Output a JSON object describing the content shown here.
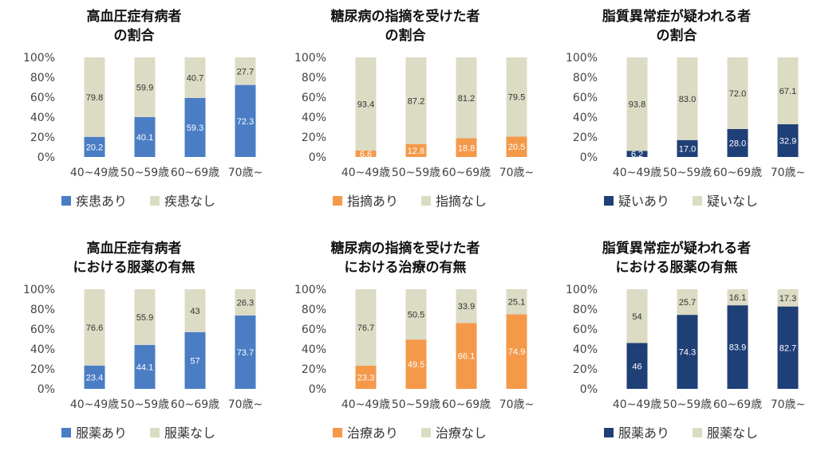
{
  "colors": {
    "none": "#dcdbc4",
    "blue": "#4a7dc4",
    "orange": "#f4994a",
    "navy": "#1f3f77"
  },
  "chart_data": [
    {
      "type": "bar",
      "stacked": true,
      "title": [
        "高血圧症有病者",
        "の割合"
      ],
      "categories": [
        "40~49歳",
        "50~59歳",
        "60~69歳",
        "70歳~"
      ],
      "yticks": [
        "0%",
        "20%",
        "40%",
        "60%",
        "80%",
        "100%"
      ],
      "ylim": [
        0,
        100
      ],
      "series": [
        {
          "name": "疾患あり",
          "values": [
            20.2,
            40.1,
            59.3,
            72.3
          ],
          "labels": [
            "20.2",
            "40.1",
            "59.3",
            "72.3"
          ],
          "color": "blue"
        },
        {
          "name": "疾患なし",
          "values": [
            79.8,
            59.9,
            40.7,
            27.7
          ],
          "labels": [
            "79.8",
            "59.9",
            "40.7",
            "27.7"
          ],
          "color": "none"
        }
      ]
    },
    {
      "type": "bar",
      "stacked": true,
      "title": [
        "糖尿病の指摘を受けた者",
        "の割合"
      ],
      "categories": [
        "40~49歳",
        "50~59歳",
        "60~69歳",
        "70歳~"
      ],
      "yticks": [
        "0%",
        "20%",
        "40%",
        "60%",
        "80%",
        "100%"
      ],
      "ylim": [
        0,
        100
      ],
      "series": [
        {
          "name": "指摘あり",
          "values": [
            6.6,
            12.8,
            18.8,
            20.5
          ],
          "labels": [
            "6.6",
            "12.8",
            "18.8",
            "20.5"
          ],
          "color": "orange"
        },
        {
          "name": "指摘なし",
          "values": [
            93.4,
            87.2,
            81.2,
            79.5
          ],
          "labels": [
            "93.4",
            "87.2",
            "81.2",
            "79.5"
          ],
          "color": "none"
        }
      ]
    },
    {
      "type": "bar",
      "stacked": true,
      "title": [
        "脂質異常症が疑われる者",
        "の割合"
      ],
      "categories": [
        "40~49歳",
        "50~59歳",
        "60~69歳",
        "70歳~"
      ],
      "yticks": [
        "0%",
        "20%",
        "40%",
        "60%",
        "80%",
        "100%"
      ],
      "ylim": [
        0,
        100
      ],
      "series": [
        {
          "name": "疑いあり",
          "values": [
            6.2,
            17.0,
            28.0,
            32.9
          ],
          "labels": [
            "6.2",
            "17.0",
            "28.0",
            "32.9"
          ],
          "color": "navy"
        },
        {
          "name": "疑いなし",
          "values": [
            93.8,
            83.0,
            72.0,
            67.1
          ],
          "labels": [
            "93.8",
            "83.0",
            "72.0",
            "67.1"
          ],
          "color": "none"
        }
      ]
    },
    {
      "type": "bar",
      "stacked": true,
      "title": [
        "高血圧症有病者",
        "における服薬の有無"
      ],
      "categories": [
        "40~49歳",
        "50~59歳",
        "60~69歳",
        "70歳~"
      ],
      "yticks": [
        "0%",
        "20%",
        "40%",
        "60%",
        "80%",
        "100%"
      ],
      "ylim": [
        0,
        100
      ],
      "series": [
        {
          "name": "服薬あり",
          "values": [
            23.4,
            44.1,
            57,
            73.7
          ],
          "labels": [
            "23.4",
            "44.1",
            "57",
            "73.7"
          ],
          "color": "blue"
        },
        {
          "name": "服薬なし",
          "values": [
            76.6,
            55.9,
            43,
            26.3
          ],
          "labels": [
            "76.6",
            "55.9",
            "43",
            "26.3"
          ],
          "color": "none"
        }
      ]
    },
    {
      "type": "bar",
      "stacked": true,
      "title": [
        "糖尿病の指摘を受けた者",
        "における治療の有無"
      ],
      "categories": [
        "40~49歳",
        "50~59歳",
        "60~69歳",
        "70歳~"
      ],
      "yticks": [
        "0%",
        "20%",
        "40%",
        "60%",
        "80%",
        "100%"
      ],
      "ylim": [
        0,
        100
      ],
      "series": [
        {
          "name": "治療あり",
          "values": [
            23.3,
            49.5,
            66.1,
            74.9
          ],
          "labels": [
            "23.3",
            "49.5",
            "66.1",
            "74.9"
          ],
          "color": "orange"
        },
        {
          "name": "治療なし",
          "values": [
            76.7,
            50.5,
            33.9,
            25.1
          ],
          "labels": [
            "76.7",
            "50.5",
            "33.9",
            "25.1"
          ],
          "color": "none"
        }
      ]
    },
    {
      "type": "bar",
      "stacked": true,
      "title": [
        "脂質異常症が疑われる者",
        "における服薬の有無"
      ],
      "categories": [
        "40~49歳",
        "50~59歳",
        "60~69歳",
        "70歳~"
      ],
      "yticks": [
        "0%",
        "20%",
        "40%",
        "60%",
        "80%",
        "100%"
      ],
      "ylim": [
        0,
        100
      ],
      "series": [
        {
          "name": "服薬あり",
          "values": [
            46,
            74.3,
            83.9,
            82.7
          ],
          "labels": [
            "46",
            "74.3",
            "83.9",
            "82.7"
          ],
          "color": "navy"
        },
        {
          "name": "服薬なし",
          "values": [
            54,
            25.7,
            16.1,
            17.3
          ],
          "labels": [
            "54",
            "25.7",
            "16.1",
            "17.3"
          ],
          "color": "none"
        }
      ]
    }
  ]
}
